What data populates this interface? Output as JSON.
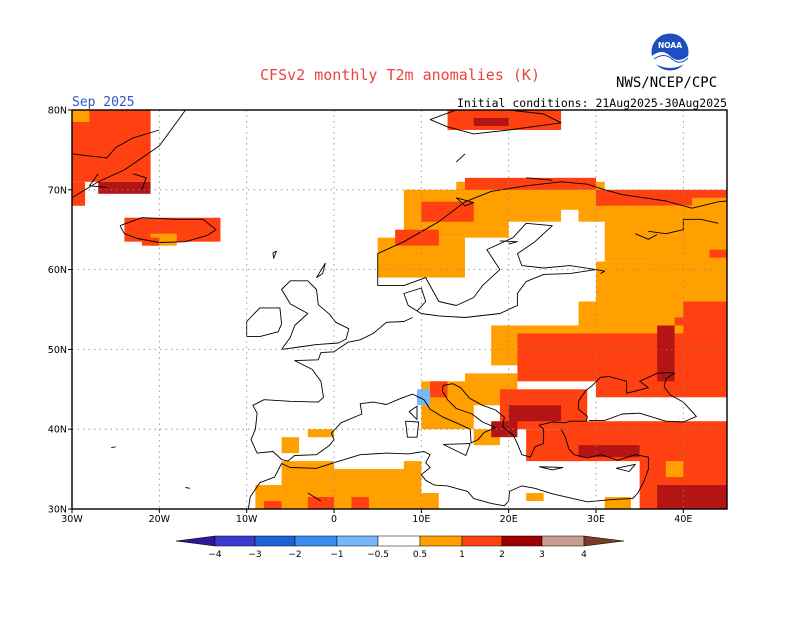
{
  "header": {
    "title": "CFSv2 monthly T2m anomalies (K)",
    "month": "Sep 2025",
    "initial_conditions": "Initial conditions: 21Aug2025-30Aug2025",
    "agency": "NWS/NCEP/CPC",
    "logo_text": "NOAA"
  },
  "map": {
    "lon_labels": [
      "30W",
      "20W",
      "10W",
      "0",
      "10E",
      "20E",
      "30E",
      "40E"
    ],
    "lat_labels": [
      "80N",
      "70N",
      "60N",
      "50N",
      "40N",
      "30N"
    ],
    "lon_range": [
      -30,
      45
    ],
    "lat_range": [
      30,
      80
    ]
  },
  "colorbar": {
    "labels": [
      "−4",
      "−3",
      "−2",
      "−1",
      "−0.5",
      "0.5",
      "1",
      "2",
      "3",
      "4"
    ],
    "colors": [
      "#2a1a9a",
      "#3a3ad0",
      "#1e60d8",
      "#3a8ef0",
      "#78b8f8",
      "#ffffff",
      "#ffa000",
      "#ff4010",
      "#a00000",
      "#c89c90",
      "#7a3a28"
    ]
  },
  "colors": {
    "orange": "#ffa000",
    "red": "#ff4010",
    "darkred": "#b41414",
    "blue": "#78b8f8",
    "grid": "#888888"
  }
}
